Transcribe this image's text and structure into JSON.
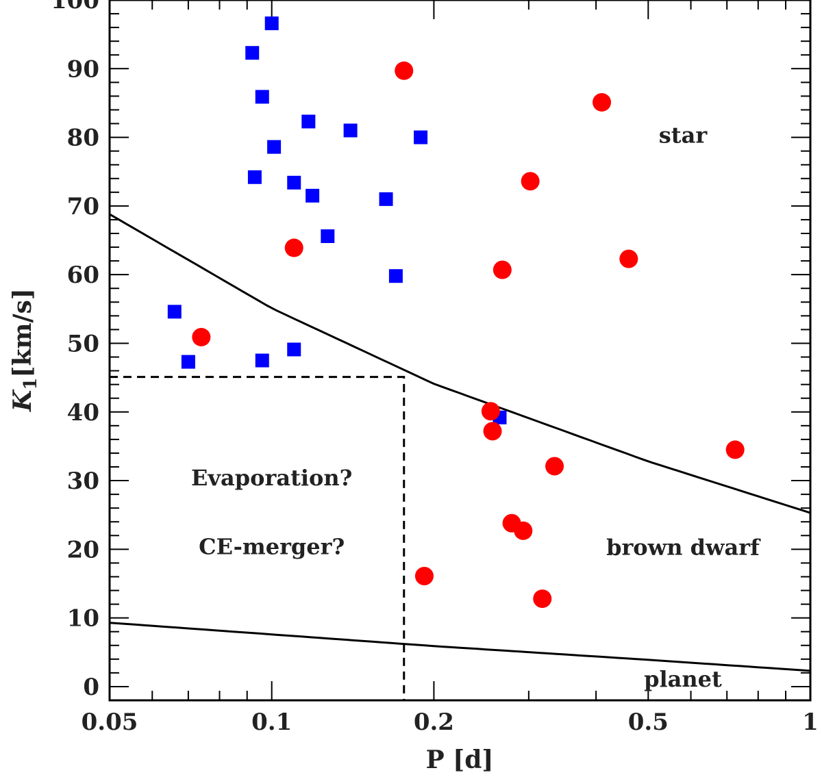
{
  "chart_data": {
    "type": "scatter",
    "xscale": "log",
    "xlim": [
      0.05,
      1
    ],
    "ylim": [
      -2,
      100
    ],
    "xlabel": "P [d]",
    "ylabel_main": "K",
    "ylabel_sub": "1",
    "ylabel_unit": "[km/s]",
    "xticks": [
      {
        "value": 0.05,
        "label": "0.05"
      },
      {
        "value": 0.1,
        "label": "0.1"
      },
      {
        "value": 0.2,
        "label": "0.2"
      },
      {
        "value": 0.5,
        "label": "0.5"
      },
      {
        "value": 1,
        "label": "1"
      }
    ],
    "yticks": [
      {
        "value": 0,
        "label": "0"
      },
      {
        "value": 10,
        "label": "10"
      },
      {
        "value": 20,
        "label": "20"
      },
      {
        "value": 30,
        "label": "30"
      },
      {
        "value": 40,
        "label": "40"
      },
      {
        "value": 50,
        "label": "50"
      },
      {
        "value": 60,
        "label": "60"
      },
      {
        "value": 70,
        "label": "70"
      },
      {
        "value": 80,
        "label": "80"
      },
      {
        "value": 90,
        "label": "90"
      },
      {
        "value": 100,
        "label": "100"
      }
    ],
    "series": [
      {
        "name": "squares",
        "marker": "square",
        "color": "#0000ff",
        "points": [
          [
            0.1,
            96.6
          ],
          [
            0.092,
            92.3
          ],
          [
            0.096,
            85.9
          ],
          [
            0.117,
            82.3
          ],
          [
            0.14,
            81.0
          ],
          [
            0.189,
            80.0
          ],
          [
            0.101,
            78.6
          ],
          [
            0.093,
            74.2
          ],
          [
            0.11,
            73.4
          ],
          [
            0.119,
            71.5
          ],
          [
            0.163,
            71.0
          ],
          [
            0.127,
            65.6
          ],
          [
            0.17,
            59.8
          ],
          [
            0.066,
            54.6
          ],
          [
            0.11,
            49.1
          ],
          [
            0.07,
            47.3
          ],
          [
            0.096,
            47.5
          ],
          [
            0.265,
            39.2
          ]
        ]
      },
      {
        "name": "circles",
        "marker": "circle",
        "color": "#ff0000",
        "points": [
          [
            0.176,
            89.7
          ],
          [
            0.41,
            85.1
          ],
          [
            0.302,
            73.6
          ],
          [
            0.11,
            63.9
          ],
          [
            0.268,
            60.7
          ],
          [
            0.46,
            62.3
          ],
          [
            0.074,
            50.9
          ],
          [
            0.255,
            40.1
          ],
          [
            0.257,
            37.2
          ],
          [
            0.725,
            34.5
          ],
          [
            0.335,
            32.1
          ],
          [
            0.279,
            23.8
          ],
          [
            0.293,
            22.7
          ],
          [
            0.192,
            16.1
          ],
          [
            0.318,
            12.8
          ]
        ]
      }
    ],
    "curves": [
      {
        "name": "star/brown dwarf boundary",
        "style": "solid",
        "points": [
          [
            0.05,
            68.8
          ],
          [
            0.1,
            55.1
          ],
          [
            0.2,
            44.1
          ],
          [
            0.5,
            32.8
          ],
          [
            1,
            25.3
          ]
        ]
      },
      {
        "name": "brown dwarf/planet boundary",
        "style": "solid",
        "points": [
          [
            0.05,
            9.3
          ],
          [
            0.1,
            7.6
          ],
          [
            0.2,
            5.9
          ],
          [
            0.5,
            3.9
          ],
          [
            1,
            2.3
          ]
        ]
      }
    ],
    "dashed_region": {
      "x_max": 0.176,
      "y_max": 45.1
    },
    "annotations": [
      {
        "text": "star",
        "x": 0.58,
        "y": 79.2
      },
      {
        "text": "brown dwarf",
        "x": 0.58,
        "y": 19.2
      },
      {
        "text": "planet",
        "x": 0.58,
        "y": 0.0
      },
      {
        "text": "Evaporation?",
        "x": 0.1,
        "y": 29.3
      },
      {
        "text": "CE-merger?",
        "x": 0.1,
        "y": 19.3
      }
    ]
  }
}
